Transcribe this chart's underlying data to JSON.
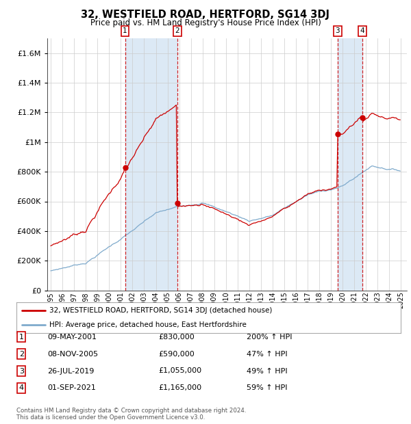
{
  "title": "32, WESTFIELD ROAD, HERTFORD, SG14 3DJ",
  "subtitle": "Price paid vs. HM Land Registry's House Price Index (HPI)",
  "footer": "Contains HM Land Registry data © Crown copyright and database right 2024.\nThis data is licensed under the Open Government Licence v3.0.",
  "legend_line1": "32, WESTFIELD ROAD, HERTFORD, SG14 3DJ (detached house)",
  "legend_line2": "HPI: Average price, detached house, East Hertfordshire",
  "transactions": [
    {
      "num": 1,
      "date": "09-MAY-2001",
      "price": 830000,
      "pct": "200%",
      "dir": "↑",
      "year": 2001.36
    },
    {
      "num": 2,
      "date": "08-NOV-2005",
      "price": 590000,
      "pct": "47%",
      "dir": "↑",
      "year": 2005.85
    },
    {
      "num": 3,
      "date": "26-JUL-2019",
      "price": 1055000,
      "pct": "49%",
      "dir": "↑",
      "year": 2019.57
    },
    {
      "num": 4,
      "date": "01-SEP-2021",
      "price": 1165000,
      "pct": "59%",
      "dir": "↑",
      "year": 2021.67
    }
  ],
  "hpi_color": "#7faacc",
  "price_color": "#cc0000",
  "shade_color": "#dce9f5",
  "plot_bg": "#ffffff",
  "grid_color": "#cccccc",
  "ylim_max": 1700000,
  "ytick_step": 200000,
  "xlim_start": 1994.7,
  "xlim_end": 2025.5,
  "years_ticks": [
    1995,
    1996,
    1997,
    1998,
    1999,
    2000,
    2001,
    2002,
    2003,
    2004,
    2005,
    2006,
    2007,
    2008,
    2009,
    2010,
    2011,
    2012,
    2013,
    2014,
    2015,
    2016,
    2017,
    2018,
    2019,
    2020,
    2021,
    2022,
    2023,
    2024,
    2025
  ]
}
